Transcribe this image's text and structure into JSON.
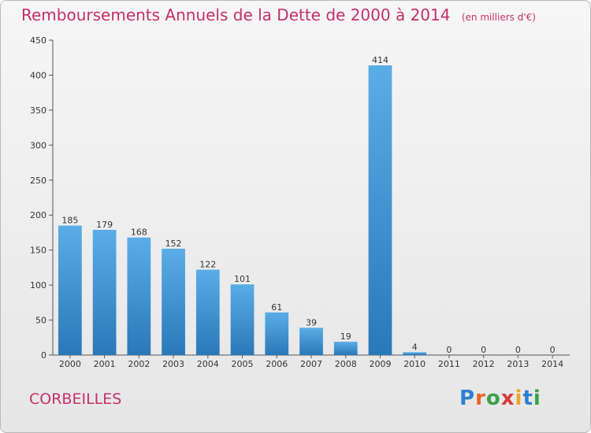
{
  "title": "Remboursements Annuels de la Dette de 2000 à 2014",
  "subtitle": "(en milliers d'€)",
  "commune": "CORBEILLES",
  "logo": {
    "text": "Proxiti",
    "letters": [
      "P",
      "r",
      "o",
      "x",
      "i",
      "t",
      "i"
    ],
    "colors": [
      "#2f7fd0",
      "#e9622a",
      "#3aa04a",
      "#d63a3a",
      "#e9a82a",
      "#2f7fd0",
      "#3aa04a"
    ]
  },
  "colors": {
    "bar_top": "#5aade6",
    "bar_bottom": "#2a78b8",
    "title": "#c4306a"
  },
  "chart_data": {
    "type": "bar",
    "categories": [
      "2000",
      "2001",
      "2002",
      "2003",
      "2004",
      "2005",
      "2006",
      "2007",
      "2008",
      "2009",
      "2010",
      "2011",
      "2012",
      "2013",
      "2014"
    ],
    "values": [
      185,
      179,
      168,
      152,
      122,
      101,
      61,
      39,
      19,
      414,
      4,
      0,
      0,
      0,
      0
    ],
    "title": "Remboursements Annuels de la Dette de 2000 à 2014",
    "subtitle": "(en milliers d'€)",
    "xlabel": "",
    "ylabel": "",
    "ylim": [
      0,
      450
    ],
    "yticks": [
      0,
      50,
      100,
      150,
      200,
      250,
      300,
      350,
      400,
      450
    ],
    "grid": false,
    "data_labels": true
  }
}
